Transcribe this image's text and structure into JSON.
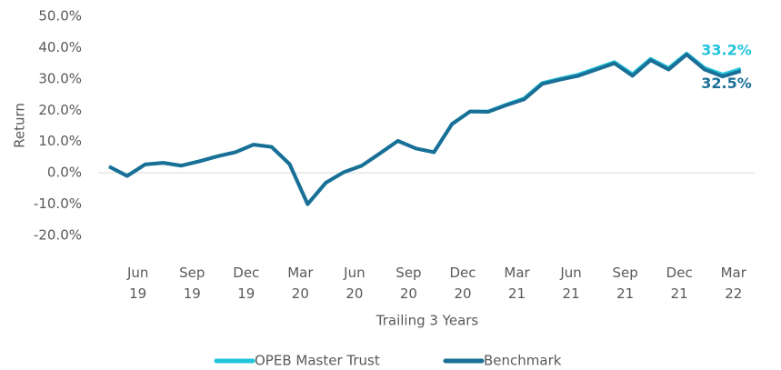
{
  "chart_data": {
    "type": "line",
    "x_label": "Trailing 3 Years",
    "y_label": "Return",
    "categories": [
      null,
      null,
      "Jun\n19",
      null,
      null,
      "Sep\n19",
      null,
      null,
      "Dec\n19",
      null,
      null,
      "Mar\n20",
      null,
      null,
      "Jun\n20",
      null,
      null,
      "Sep\n20",
      null,
      null,
      "Dec\n20",
      null,
      null,
      "Mar\n21",
      null,
      null,
      "Jun\n21",
      null,
      null,
      "Sep\n21",
      null,
      null,
      "Dec\n21",
      null,
      null,
      "Mar\n22"
    ],
    "series": [
      {
        "name": "OPEB Master Trust",
        "color": "#22c4dc",
        "values": [
          2.0,
          -1.0,
          2.7,
          3.2,
          2.3,
          3.7,
          5.3,
          6.6,
          9.0,
          8.3,
          2.8,
          -10.0,
          -3.2,
          0.2,
          2.3,
          6.2,
          10.2,
          7.8,
          6.6,
          15.6,
          19.6,
          19.6,
          21.8,
          23.8,
          28.7,
          30.1,
          31.4,
          33.4,
          35.4,
          31.5,
          36.4,
          33.5,
          38.1,
          33.5,
          31.4,
          33.2
        ],
        "value_labels": [
          null,
          null,
          null,
          null,
          null,
          null,
          null,
          null,
          null,
          null,
          null,
          null,
          null,
          null,
          null,
          null,
          null,
          null,
          null,
          null,
          null,
          null,
          null,
          null,
          null,
          null,
          null,
          null,
          null,
          null,
          null,
          null,
          null,
          null,
          null,
          "33.2%"
        ]
      },
      {
        "name": "Benchmark",
        "color": "#1a6f96",
        "values": [
          2.0,
          -1.0,
          2.7,
          3.2,
          2.3,
          3.7,
          5.3,
          6.6,
          9.0,
          8.3,
          2.8,
          -10.0,
          -3.2,
          0.2,
          2.3,
          6.2,
          10.2,
          7.8,
          6.6,
          15.6,
          19.6,
          19.5,
          21.6,
          23.5,
          28.4,
          29.8,
          31.0,
          33.0,
          35.0,
          31.0,
          36.0,
          33.0,
          37.8,
          33.0,
          30.8,
          32.5
        ],
        "value_labels": [
          null,
          null,
          null,
          null,
          null,
          null,
          null,
          null,
          null,
          null,
          null,
          null,
          null,
          null,
          null,
          null,
          null,
          null,
          null,
          null,
          null,
          null,
          null,
          null,
          null,
          null,
          null,
          null,
          null,
          null,
          null,
          null,
          null,
          null,
          null,
          "32.5%"
        ]
      }
    ],
    "ylim": [
      -20,
      50
    ],
    "yticks": [
      {
        "value": -20,
        "label": "-20.0%"
      },
      {
        "value": -10,
        "label": "-10.0%"
      },
      {
        "value": 0,
        "label": "0.0%"
      },
      {
        "value": 10,
        "label": "10.0%"
      },
      {
        "value": 20,
        "label": "20.0%"
      },
      {
        "value": 30,
        "label": "30.0%"
      },
      {
        "value": 40,
        "label": "40.0%"
      },
      {
        "value": 50,
        "label": "50.0%"
      }
    ],
    "grid": false,
    "legend": "bottom"
  }
}
